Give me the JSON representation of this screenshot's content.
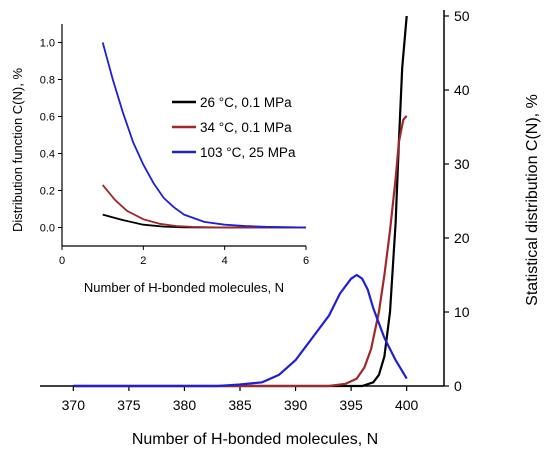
{
  "chart_data": [
    {
      "id": "main",
      "type": "line",
      "xlabel": "Number of H-bonded molecules, N",
      "ylabel": "Statistical distribution C(N), %",
      "xlim": [
        367,
        403
      ],
      "ylim": [
        0,
        50
      ],
      "xticks": [
        370,
        375,
        380,
        385,
        390,
        395,
        400
      ],
      "yticks": [
        0,
        10,
        20,
        30,
        40,
        50
      ],
      "y_axis_side": "right",
      "grid": false,
      "series": [
        {
          "name": "26 °C, 0.1 MPa",
          "color": "#000000",
          "x": [
            370,
            390,
            396,
            397,
            397.5,
            398,
            398.5,
            399,
            399.3,
            399.6,
            400
          ],
          "y": [
            0,
            0,
            0,
            0.5,
            1.5,
            4,
            10,
            22,
            33,
            43,
            50
          ]
        },
        {
          "name": "34 °C, 0.1 MPa",
          "color": "#A0282A",
          "x": [
            370,
            393,
            394.5,
            395.5,
            396.2,
            396.8,
            397.5,
            398,
            398.5,
            399,
            399.3,
            399.7,
            400
          ],
          "y": [
            0,
            0,
            0.3,
            1,
            2.5,
            5,
            10,
            15,
            21,
            28,
            33,
            36,
            36.5
          ]
        },
        {
          "name": "103 °C, 25 MPa",
          "color": "#1F1FD6",
          "x": [
            370,
            383,
            385,
            387,
            388.5,
            390,
            391,
            392,
            393,
            394,
            395,
            395.5,
            396,
            396.5,
            397,
            398,
            399,
            400
          ],
          "y": [
            0,
            0,
            0.2,
            0.5,
            1.5,
            3.5,
            5.5,
            7.5,
            9.5,
            12.5,
            14.5,
            15,
            14.5,
            13,
            10.5,
            6.5,
            3.5,
            1
          ]
        }
      ]
    },
    {
      "id": "inset",
      "type": "line",
      "xlabel": "Number of H-bonded molecules, N",
      "ylabel": "Distribution function C(N), %",
      "xlim": [
        0,
        6
      ],
      "ylim": [
        -0.1,
        1.1
      ],
      "xticks": [
        0,
        2,
        4,
        6
      ],
      "yticks": [
        0.0,
        0.2,
        0.4,
        0.6,
        0.8,
        1.0
      ],
      "yticklabels": [
        "0.0",
        "0.2",
        "0.4",
        "0.6",
        "0.8",
        "1.0"
      ],
      "legend_placement": "top-right",
      "grid": false,
      "series": [
        {
          "name": "26 °C, 0.1 MPa",
          "color": "#000000",
          "x": [
            1,
            1.5,
            2,
            2.5,
            3,
            4,
            5,
            6
          ],
          "y": [
            0.07,
            0.04,
            0.015,
            0.005,
            0.001,
            0,
            0,
            0
          ]
        },
        {
          "name": "34 °C, 0.1 MPa",
          "color": "#A0282A",
          "x": [
            1,
            1.3,
            1.6,
            2,
            2.4,
            2.8,
            3.2,
            4,
            5,
            6
          ],
          "y": [
            0.23,
            0.15,
            0.09,
            0.045,
            0.02,
            0.008,
            0.003,
            0,
            0,
            0
          ]
        },
        {
          "name": "103 °C, 25 MPa",
          "color": "#1F1FD6",
          "x": [
            1,
            1.25,
            1.5,
            1.75,
            2,
            2.25,
            2.5,
            2.75,
            3,
            3.5,
            4,
            4.5,
            5,
            6
          ],
          "y": [
            1.0,
            0.8,
            0.62,
            0.46,
            0.34,
            0.24,
            0.16,
            0.11,
            0.07,
            0.03,
            0.015,
            0.008,
            0.004,
            0
          ]
        }
      ]
    }
  ]
}
